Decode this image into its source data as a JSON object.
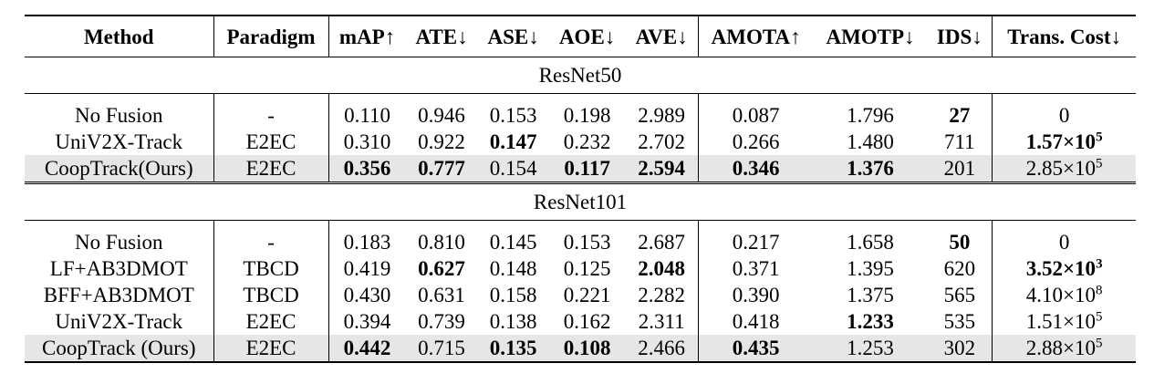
{
  "headers": [
    "Method",
    "Paradigm",
    "mAP↑",
    "ATE↓",
    "ASE↓",
    "AOE↓",
    "AVE↓",
    "AMOTA↑",
    "AMOTP↓",
    "IDS↓",
    "Trans. Cost↓"
  ],
  "sections": [
    {
      "title": "ResNet50",
      "rows": [
        {
          "method": "No Fusion",
          "paradigm": "-",
          "map": "0.110",
          "ate": "0.946",
          "ase": "0.153",
          "aoe": "0.198",
          "ave": "2.989",
          "amota": "0.087",
          "amotp": "1.796",
          "ids": "27",
          "cost_base": "0",
          "cost_exp": ""
        },
        {
          "method": "UniV2X-Track",
          "paradigm": "E2EC",
          "map": "0.310",
          "ate": "0.922",
          "ase": "0.147",
          "aoe": "0.232",
          "ave": "2.702",
          "amota": "0.266",
          "amotp": "1.480",
          "ids": "711",
          "cost_base": "1.57×10",
          "cost_exp": "5"
        },
        {
          "method": "CoopTrack(Ours)",
          "paradigm": "E2EC",
          "map": "0.356",
          "ate": "0.777",
          "ase": "0.154",
          "aoe": "0.117",
          "ave": "2.594",
          "amota": "0.346",
          "amotp": "1.376",
          "ids": "201",
          "cost_base": "2.85×10",
          "cost_exp": "5"
        }
      ]
    },
    {
      "title": "ResNet101",
      "rows": [
        {
          "method": "No Fusion",
          "paradigm": "-",
          "map": "0.183",
          "ate": "0.810",
          "ase": "0.145",
          "aoe": "0.153",
          "ave": "2.687",
          "amota": "0.217",
          "amotp": "1.658",
          "ids": "50",
          "cost_base": "0",
          "cost_exp": ""
        },
        {
          "method": "LF+AB3DMOT",
          "paradigm": "TBCD",
          "map": "0.419",
          "ate": "0.627",
          "ase": "0.148",
          "aoe": "0.125",
          "ave": "2.048",
          "amota": "0.371",
          "amotp": "1.395",
          "ids": "620",
          "cost_base": "3.52×10",
          "cost_exp": "3"
        },
        {
          "method": "BFF+AB3DMOT",
          "paradigm": "TBCD",
          "map": "0.430",
          "ate": "0.631",
          "ase": "0.158",
          "aoe": "0.221",
          "ave": "2.282",
          "amota": "0.390",
          "amotp": "1.375",
          "ids": "565",
          "cost_base": "4.10×10",
          "cost_exp": "8"
        },
        {
          "method": "UniV2X-Track",
          "paradigm": "E2EC",
          "map": "0.394",
          "ate": "0.739",
          "ase": "0.138",
          "aoe": "0.162",
          "ave": "2.311",
          "amota": "0.418",
          "amotp": "1.233",
          "ids": "535",
          "cost_base": "1.51×10",
          "cost_exp": "5"
        },
        {
          "method": "CoopTrack (Ours)",
          "paradigm": "E2EC",
          "map": "0.442",
          "ate": "0.715",
          "ase": "0.135",
          "aoe": "0.108",
          "ave": "2.466",
          "amota": "0.435",
          "amotp": "1.253",
          "ids": "302",
          "cost_base": "2.88×10",
          "cost_exp": "5"
        }
      ]
    }
  ]
}
